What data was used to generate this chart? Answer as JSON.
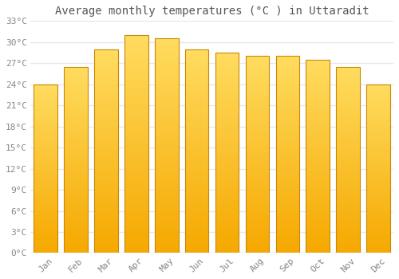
{
  "months": [
    "Jan",
    "Feb",
    "Mar",
    "Apr",
    "May",
    "Jun",
    "Jul",
    "Aug",
    "Sep",
    "Oct",
    "Nov",
    "Dec"
  ],
  "temperatures": [
    24.0,
    26.5,
    29.0,
    31.0,
    30.5,
    29.0,
    28.5,
    28.0,
    28.0,
    27.5,
    26.5,
    24.0
  ],
  "bar_color_bottom": "#F5A800",
  "bar_color_top": "#FFD966",
  "bar_edge_color": "#C8880A",
  "title": "Average monthly temperatures (°C ) in Uttaradit",
  "ylim": [
    0,
    33
  ],
  "yticks": [
    0,
    3,
    6,
    9,
    12,
    15,
    18,
    21,
    24,
    27,
    30,
    33
  ],
  "ytick_labels": [
    "0°C",
    "3°C",
    "6°C",
    "9°C",
    "12°C",
    "15°C",
    "18°C",
    "21°C",
    "24°C",
    "27°C",
    "30°C",
    "33°C"
  ],
  "background_color": "#ffffff",
  "grid_color": "#e8e8e8",
  "title_fontsize": 10,
  "tick_fontsize": 8,
  "font_color": "#888888",
  "title_color": "#555555",
  "bar_width": 0.78
}
